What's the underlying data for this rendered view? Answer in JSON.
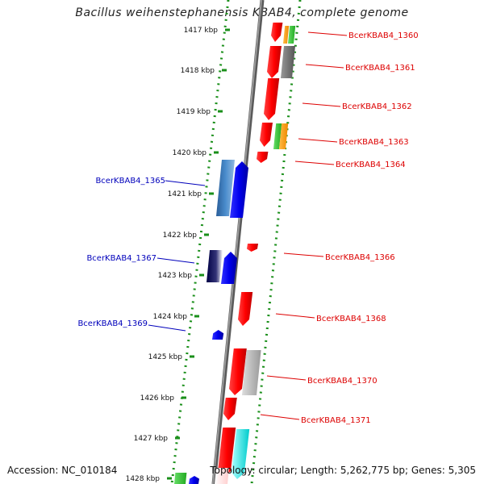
{
  "title": "Bacillus weihenstephanensis KBAB4, complete genome",
  "accession": "Accession: NC_010184",
  "topology": "Topology: circular; Length: 5,262,775 bp; Genes: 5,305",
  "colors": {
    "backbone": "#808080",
    "scale_ticks": "#1a8f1a",
    "forward_label": "#dd0000",
    "reverse_label": "#0000bb",
    "gene_red": "#ff0000",
    "gene_blue": "#0000ee",
    "gene_green": "#33cc33",
    "gene_orange": "#ff9900",
    "gene_gray": "#777777",
    "gene_steelblue": "#3a7bbf",
    "gene_navy": "#00005e",
    "gene_cyan": "#00e5ee"
  },
  "scale": {
    "unit_suffix": "kbp",
    "tick_labels": [
      "1417 kbp",
      "1418 kbp",
      "1419 kbp",
      "1420 kbp",
      "1421 kbp",
      "1422 kbp",
      "1423 kbp",
      "1424 kbp",
      "1425 kbp",
      "1426 kbp",
      "1427 kbp",
      "1428 kbp"
    ]
  },
  "gene_labels": [
    {
      "text": "BcerKBAB4_1360",
      "strand": "forward"
    },
    {
      "text": "BcerKBAB4_1361",
      "strand": "forward"
    },
    {
      "text": "BcerKBAB4_1362",
      "strand": "forward"
    },
    {
      "text": "BcerKBAB4_1363",
      "strand": "forward"
    },
    {
      "text": "BcerKBAB4_1364",
      "strand": "forward"
    },
    {
      "text": "BcerKBAB4_1365",
      "strand": "reverse"
    },
    {
      "text": "BcerKBAB4_1366",
      "strand": "forward"
    },
    {
      "text": "BcerKBAB4_1367",
      "strand": "reverse"
    },
    {
      "text": "BcerKBAB4_1368",
      "strand": "forward"
    },
    {
      "text": "BcerKBAB4_1369",
      "strand": "reverse"
    },
    {
      "text": "BcerKBAB4_1370",
      "strand": "forward"
    },
    {
      "text": "BcerKBAB4_1371",
      "strand": "forward"
    }
  ]
}
